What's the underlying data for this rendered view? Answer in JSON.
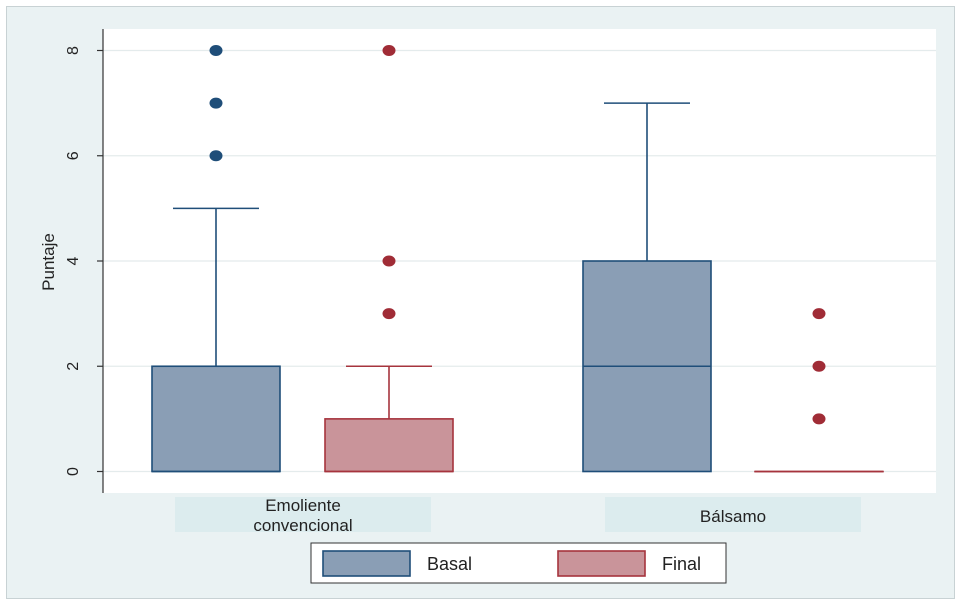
{
  "chart_data": {
    "type": "boxplot",
    "ylabel": "Puntaje",
    "ylim": [
      0,
      8.4
    ],
    "yticks": [
      0,
      2,
      4,
      6,
      8
    ],
    "grid": true,
    "legend_position": "bottom",
    "categories": [
      {
        "label_lines": [
          "Emoliente",
          "convencional"
        ]
      },
      {
        "label_lines": [
          "Bálsamo"
        ]
      }
    ],
    "series": [
      {
        "name": "Basal",
        "color": "#8a9eb5",
        "edge": "#1f4e79",
        "outlier_color": "#1f4e79",
        "boxes": [
          {
            "min": 0,
            "q1": 0,
            "median": 0,
            "q3": 2,
            "max": 5,
            "outliers": [
              6,
              7,
              8
            ]
          },
          {
            "min": 0,
            "q1": 0,
            "median": 2,
            "q3": 4,
            "max": 7,
            "outliers": []
          }
        ]
      },
      {
        "name": "Final",
        "color": "#c9949a",
        "edge": "#a6343d",
        "outlier_color": "#a02c36",
        "boxes": [
          {
            "min": 0,
            "q1": 0,
            "median": 0,
            "q3": 1,
            "max": 2,
            "outliers": [
              3,
              4,
              8
            ]
          },
          {
            "min": 0,
            "q1": 0,
            "median": 0,
            "q3": 0,
            "max": 0,
            "outliers": [
              1,
              2,
              3
            ]
          }
        ]
      }
    ]
  }
}
